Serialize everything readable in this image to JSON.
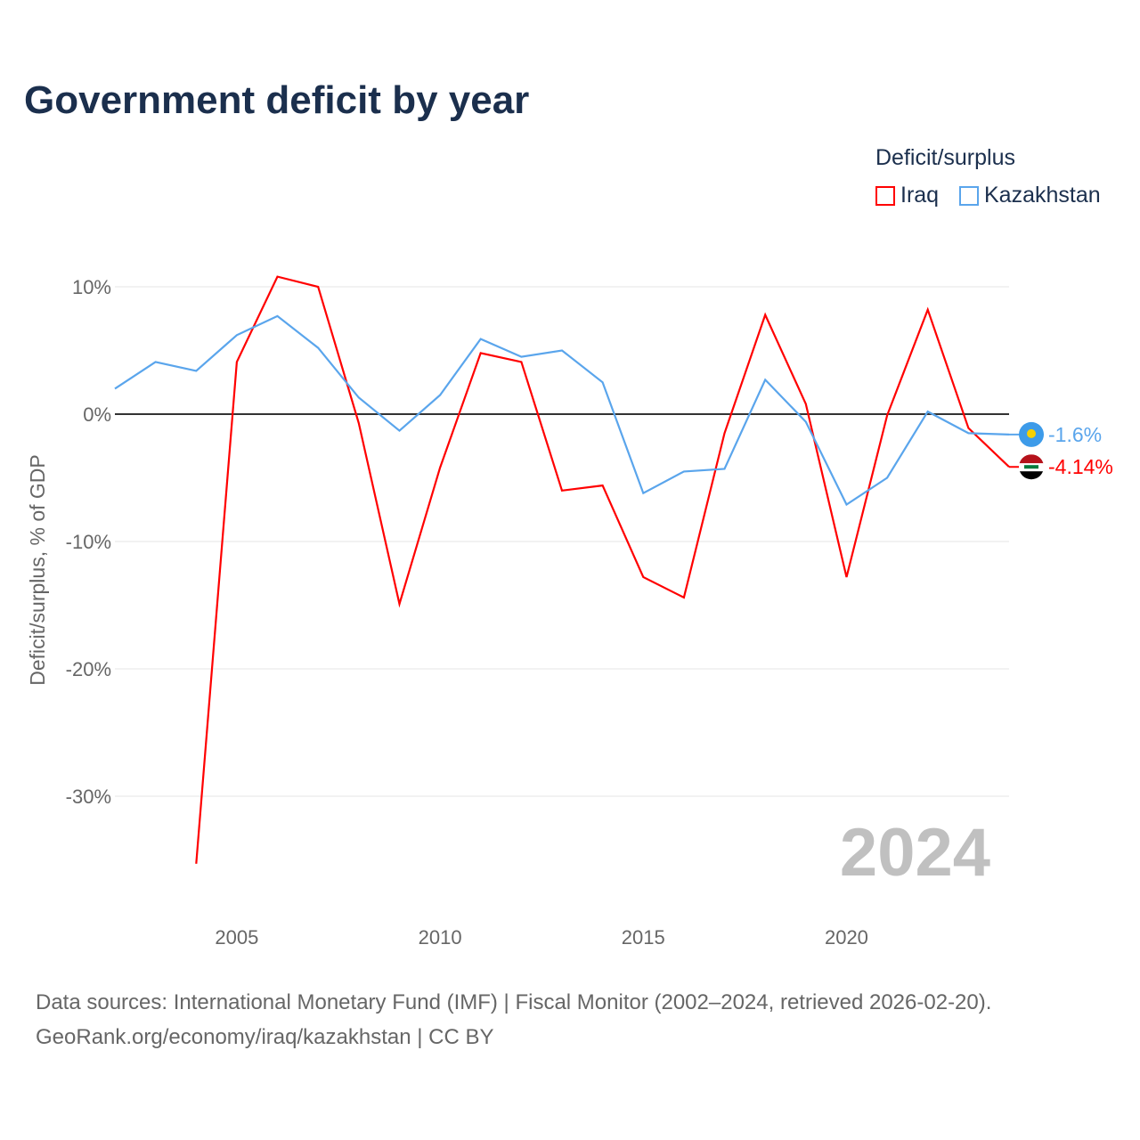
{
  "chart_data": {
    "type": "line",
    "title": "Government deficit by year",
    "ylabel": "Deficit/surplus, % of GDP",
    "xlabel": "",
    "xlim": [
      2002,
      2024
    ],
    "ylim": [
      -37,
      12
    ],
    "yticks": [
      10,
      0,
      -10,
      -20,
      -30
    ],
    "ytick_labels": [
      "10%",
      "0%",
      "-10%",
      "-20%",
      "-30%"
    ],
    "xticks": [
      2005,
      2010,
      2015,
      2020
    ],
    "xtick_labels": [
      "2005",
      "2010",
      "2015",
      "2020"
    ],
    "grid": true,
    "legend_title": "Deficit/surplus",
    "legend_position": "top-right",
    "year_watermark": "2024",
    "x": [
      2002,
      2003,
      2004,
      2005,
      2006,
      2007,
      2008,
      2009,
      2010,
      2011,
      2012,
      2013,
      2014,
      2015,
      2016,
      2017,
      2018,
      2019,
      2020,
      2021,
      2022,
      2023,
      2024
    ],
    "series": [
      {
        "name": "Iraq",
        "color": "#ff0000",
        "end_label": "-4.14%",
        "values": [
          null,
          null,
          -35.3,
          4.1,
          10.8,
          10.0,
          -0.7,
          -14.9,
          -4.2,
          4.8,
          4.1,
          -6.0,
          -5.6,
          -12.8,
          -14.4,
          -1.5,
          7.8,
          0.8,
          -12.8,
          -0.1,
          8.2,
          -1.1,
          -4.14
        ]
      },
      {
        "name": "Kazakhstan",
        "color": "#5aa5ec",
        "end_label": "-1.6%",
        "values": [
          2.0,
          4.1,
          3.4,
          6.2,
          7.7,
          5.2,
          1.3,
          -1.3,
          1.5,
          5.9,
          4.5,
          5.0,
          2.5,
          -6.2,
          -4.5,
          -4.3,
          2.7,
          -0.6,
          -7.1,
          -5.0,
          0.2,
          -1.5,
          -1.6
        ]
      }
    ]
  },
  "footer": {
    "line1": "Data sources: International Monetary Fund (IMF) | Fiscal Monitor (2002–2024, retrieved 2026-02-20).",
    "line2": "GeoRank.org/economy/iraq/kazakhstan | CC BY"
  }
}
